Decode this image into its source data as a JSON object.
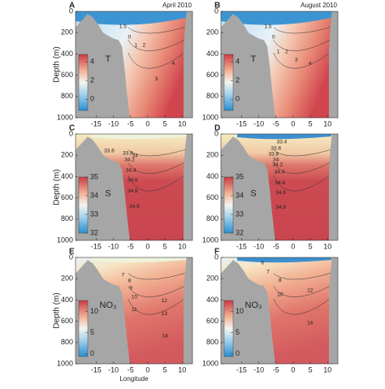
{
  "chart_data": [
    {
      "type": "contour",
      "panel": "A",
      "title": "April 2010",
      "variable": "T",
      "y_label": "Depth (m)",
      "xlim": [
        -21,
        13
      ],
      "xticks": [
        -15,
        -10,
        -5,
        0,
        5,
        10
      ],
      "ylim": [
        0,
        1000
      ],
      "yticks": [
        0,
        200,
        400,
        600,
        800,
        1000
      ],
      "y_inverted": true,
      "clim": [
        -1.2,
        4.8
      ],
      "cticks": [
        0,
        2,
        4
      ],
      "contour_labels": [
        1.5,
        0,
        1,
        2,
        4,
        3
      ]
    },
    {
      "type": "contour",
      "panel": "B",
      "title": "August 2010",
      "variable": "T",
      "xlim": [
        -21,
        13
      ],
      "xticks": [
        -15,
        -10,
        -5,
        0,
        5,
        10
      ],
      "ylim": [
        0,
        1000
      ],
      "yticks": [
        0,
        200,
        400,
        600,
        800,
        1000
      ],
      "y_inverted": true,
      "clim": [
        -1.2,
        4.8
      ],
      "cticks": [
        0,
        2,
        4
      ],
      "contour_labels": [
        1.5,
        0,
        1,
        2,
        3,
        4
      ]
    },
    {
      "type": "contour",
      "panel": "C",
      "variable": "S",
      "y_label": "Depth (m)",
      "xlim": [
        -21,
        13
      ],
      "xticks": [
        -15,
        -10,
        -5,
        0,
        5,
        10
      ],
      "ylim": [
        0,
        1000
      ],
      "yticks": [
        0,
        200,
        400,
        600,
        800,
        1000
      ],
      "y_inverted": true,
      "clim": [
        32,
        35
      ],
      "cticks": [
        32,
        33,
        34,
        35
      ],
      "contour_labels": [
        33.6,
        33.8,
        34,
        34.2,
        34.4,
        34.6,
        34.8,
        34.9
      ]
    },
    {
      "type": "contour",
      "panel": "D",
      "variable": "S",
      "xlim": [
        -21,
        13
      ],
      "xticks": [
        -15,
        -10,
        -5,
        0,
        5,
        10
      ],
      "ylim": [
        0,
        1000
      ],
      "yticks": [
        0,
        200,
        400,
        600,
        800,
        1000
      ],
      "y_inverted": true,
      "clim": [
        32,
        35
      ],
      "cticks": [
        32,
        33,
        34,
        35
      ],
      "contour_labels": [
        33.4,
        33.6,
        33.8,
        34,
        34.2,
        34.4,
        34.6,
        34.8,
        34.9
      ]
    },
    {
      "type": "contour",
      "panel": "E",
      "variable": "NO₃",
      "y_label": "Depth (m)",
      "x_label": "Longitude",
      "xlim": [
        -21,
        13
      ],
      "xticks": [
        -15,
        -10,
        -5,
        0,
        5,
        10
      ],
      "ylim": [
        0,
        1000
      ],
      "yticks": [
        0,
        200,
        400,
        600,
        800,
        1000
      ],
      "y_inverted": true,
      "clim": [
        -0.6,
        12.6
      ],
      "cticks": [
        0,
        5,
        10
      ],
      "contour_labels": [
        7,
        8,
        9,
        10,
        11,
        12,
        13,
        14
      ]
    },
    {
      "type": "contour",
      "panel": "F",
      "variable": "NO₃",
      "xlim": [
        -21,
        13
      ],
      "xticks": [
        -15,
        -10,
        -5,
        0,
        5,
        10
      ],
      "ylim": [
        0,
        1000
      ],
      "yticks": [
        0,
        200,
        400,
        600,
        800,
        1000
      ],
      "y_inverted": true,
      "clim": [
        -0.6,
        12.6
      ],
      "cticks": [
        0,
        5,
        10
      ],
      "contour_labels": [
        6,
        7,
        8,
        10,
        12,
        14
      ]
    }
  ]
}
